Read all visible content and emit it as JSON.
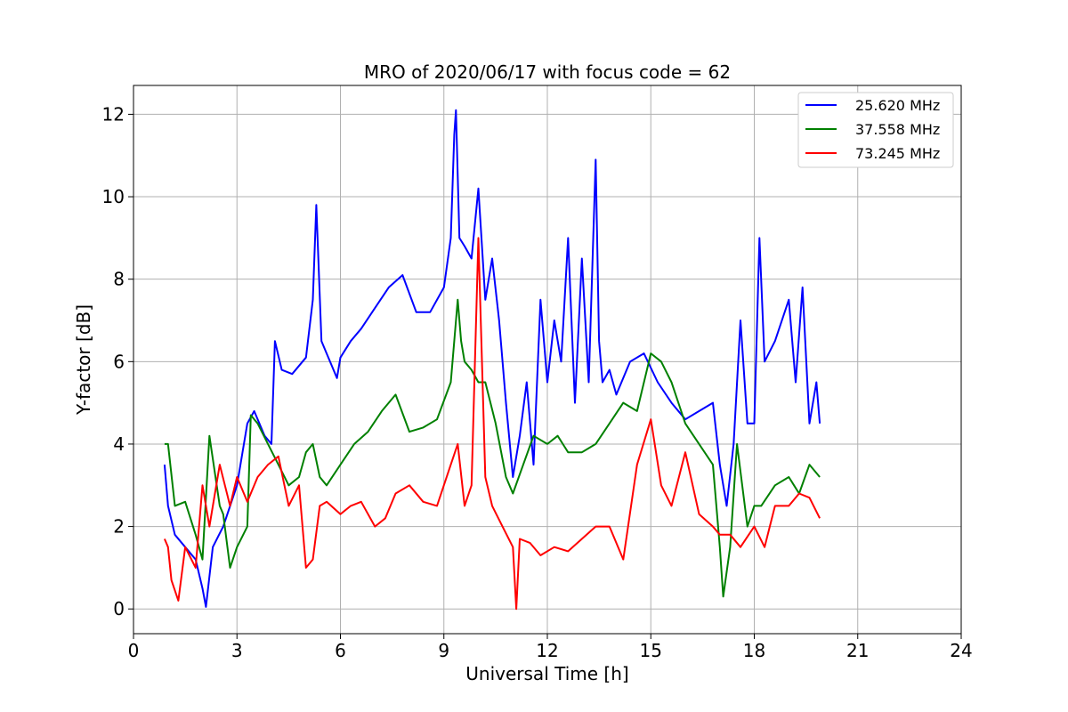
{
  "chart_data": {
    "type": "line",
    "title": "MRO of 2020/06/17 with focus code = 62",
    "xlabel": "Universal Time [h]",
    "ylabel": "Y-factor [dB]",
    "xlim": [
      0,
      24
    ],
    "ylim": [
      -0.6,
      12.7
    ],
    "xticks": [
      0,
      3,
      6,
      9,
      12,
      15,
      18,
      21,
      24
    ],
    "yticks": [
      0,
      2,
      4,
      6,
      8,
      10,
      12
    ],
    "grid": true,
    "legend_position": "top-right",
    "series": [
      {
        "name": "25.620 MHz",
        "color": "#0000ff",
        "x": [
          0.9,
          1.0,
          1.2,
          1.5,
          1.8,
          2.0,
          2.1,
          2.3,
          2.6,
          3.0,
          3.3,
          3.5,
          3.8,
          4.0,
          4.1,
          4.3,
          4.6,
          5.0,
          5.2,
          5.3,
          5.45,
          5.6,
          5.9,
          6.0,
          6.3,
          6.6,
          7.0,
          7.4,
          7.8,
          8.2,
          8.6,
          9.0,
          9.2,
          9.3,
          9.35,
          9.45,
          9.6,
          9.8,
          10.0,
          10.2,
          10.4,
          10.6,
          10.8,
          11.0,
          11.2,
          11.4,
          11.6,
          11.8,
          12.0,
          12.2,
          12.4,
          12.6,
          12.8,
          13.0,
          13.2,
          13.4,
          13.5,
          13.6,
          13.8,
          14.0,
          14.4,
          14.8,
          15.2,
          15.6,
          16.0,
          16.4,
          16.8,
          17.0,
          17.2,
          17.4,
          17.6,
          17.8,
          18.0,
          18.15,
          18.3,
          18.6,
          19.0,
          19.2,
          19.4,
          19.6,
          19.8,
          19.9
        ],
        "y": [
          3.5,
          2.5,
          1.8,
          1.5,
          1.2,
          0.5,
          0.05,
          1.5,
          2.0,
          3.0,
          4.5,
          4.8,
          4.2,
          4.0,
          6.5,
          5.8,
          5.7,
          6.1,
          7.5,
          9.8,
          6.5,
          6.2,
          5.6,
          6.1,
          6.5,
          6.8,
          7.3,
          7.8,
          8.1,
          7.2,
          7.2,
          7.8,
          9.0,
          11.5,
          12.1,
          9.0,
          8.8,
          8.5,
          10.2,
          7.5,
          8.5,
          7.0,
          5.0,
          3.2,
          4.2,
          5.5,
          3.5,
          7.5,
          5.5,
          7.0,
          6.0,
          9.0,
          5.0,
          8.5,
          5.5,
          10.9,
          6.5,
          5.5,
          5.8,
          5.2,
          6.0,
          6.2,
          5.5,
          5.0,
          4.6,
          4.8,
          5.0,
          3.5,
          2.5,
          4.0,
          7.0,
          4.5,
          4.5,
          9.0,
          6.0,
          6.5,
          7.5,
          5.5,
          7.8,
          4.5,
          5.5,
          4.5
        ]
      },
      {
        "name": "37.558 MHz",
        "color": "#008000",
        "x": [
          0.9,
          1.0,
          1.2,
          1.5,
          1.8,
          2.0,
          2.2,
          2.5,
          2.6,
          2.8,
          3.0,
          3.3,
          3.4,
          3.6,
          3.9,
          4.2,
          4.5,
          4.8,
          5.0,
          5.2,
          5.4,
          5.6,
          6.0,
          6.4,
          6.8,
          7.2,
          7.6,
          8.0,
          8.4,
          8.8,
          9.2,
          9.4,
          9.5,
          9.6,
          9.8,
          10.0,
          10.2,
          10.5,
          10.8,
          11.0,
          11.3,
          11.6,
          12.0,
          12.3,
          12.6,
          13.0,
          13.4,
          13.8,
          14.2,
          14.6,
          15.0,
          15.3,
          15.6,
          16.0,
          16.4,
          16.8,
          17.0,
          17.1,
          17.3,
          17.5,
          17.8,
          18.0,
          18.2,
          18.6,
          19.0,
          19.3,
          19.6,
          19.9
        ],
        "y": [
          4.0,
          4.0,
          2.5,
          2.6,
          1.8,
          1.2,
          4.2,
          2.5,
          2.3,
          1.0,
          1.5,
          2.0,
          4.7,
          4.5,
          4.0,
          3.5,
          3.0,
          3.2,
          3.8,
          4.0,
          3.2,
          3.0,
          3.5,
          4.0,
          4.3,
          4.8,
          5.2,
          4.3,
          4.4,
          4.6,
          5.5,
          7.5,
          6.5,
          6.0,
          5.8,
          5.5,
          5.5,
          4.5,
          3.2,
          2.8,
          3.5,
          4.2,
          4.0,
          4.2,
          3.8,
          3.8,
          4.0,
          4.5,
          5.0,
          4.8,
          6.2,
          6.0,
          5.5,
          4.5,
          4.0,
          3.5,
          1.5,
          0.3,
          1.5,
          4.0,
          2.0,
          2.5,
          2.5,
          3.0,
          3.2,
          2.8,
          3.5,
          3.2
        ]
      },
      {
        "name": "73.245 MHz",
        "color": "#ff0000",
        "x": [
          0.9,
          1.0,
          1.1,
          1.3,
          1.5,
          1.8,
          2.0,
          2.2,
          2.5,
          2.8,
          3.0,
          3.3,
          3.6,
          3.9,
          4.2,
          4.5,
          4.8,
          5.0,
          5.2,
          5.4,
          5.6,
          6.0,
          6.3,
          6.6,
          7.0,
          7.3,
          7.6,
          8.0,
          8.4,
          8.8,
          9.2,
          9.4,
          9.6,
          9.8,
          10.0,
          10.2,
          10.4,
          10.7,
          11.0,
          11.1,
          11.2,
          11.5,
          11.8,
          12.2,
          12.6,
          13.0,
          13.4,
          13.8,
          14.2,
          14.6,
          15.0,
          15.3,
          15.6,
          16.0,
          16.4,
          16.8,
          17.0,
          17.3,
          17.6,
          18.0,
          18.3,
          18.6,
          19.0,
          19.3,
          19.6,
          19.9
        ],
        "y": [
          1.7,
          1.5,
          0.7,
          0.2,
          1.5,
          1.0,
          3.0,
          2.0,
          3.5,
          2.5,
          3.2,
          2.6,
          3.2,
          3.5,
          3.7,
          2.5,
          3.0,
          1.0,
          1.2,
          2.5,
          2.6,
          2.3,
          2.5,
          2.6,
          2.0,
          2.2,
          2.8,
          3.0,
          2.6,
          2.5,
          3.5,
          4.0,
          2.5,
          3.0,
          9.0,
          3.2,
          2.5,
          2.0,
          1.5,
          0.0,
          1.7,
          1.6,
          1.3,
          1.5,
          1.4,
          1.7,
          2.0,
          2.0,
          1.2,
          3.5,
          4.6,
          3.0,
          2.5,
          3.8,
          2.3,
          2.0,
          1.8,
          1.8,
          1.5,
          2.0,
          1.5,
          2.5,
          2.5,
          2.8,
          2.7,
          2.2
        ]
      }
    ]
  }
}
